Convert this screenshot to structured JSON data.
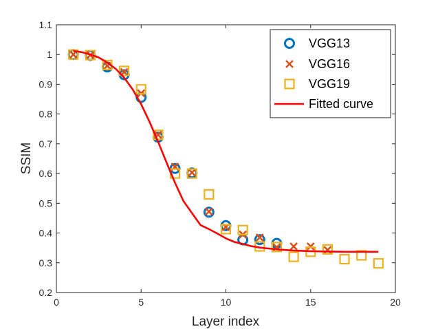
{
  "colors": {
    "vgg13": "#0072BD",
    "vgg16": "#D95319",
    "vgg19": "#EDB120",
    "fit": "#FF0000",
    "axis": "#262626",
    "background": "#FFFFFF"
  },
  "chart_data": {
    "type": "scatter",
    "title": "",
    "xlabel": "Layer index",
    "ylabel": "SSIM",
    "xlim": [
      0,
      20
    ],
    "ylim": [
      0.2,
      1.1
    ],
    "xticks": [
      0,
      5,
      10,
      15,
      20
    ],
    "yticks": [
      0.2,
      0.3,
      0.4,
      0.5,
      0.6,
      0.7,
      0.8,
      0.9,
      1,
      1.1
    ],
    "xtick_labels": [
      "0",
      "5",
      "10",
      "15",
      "20"
    ],
    "ytick_labels": [
      "0.2",
      "0.3",
      "0.4",
      "0.5",
      "0.6",
      "0.7",
      "0.8",
      "0.9",
      "1",
      "1.1"
    ],
    "grid": false,
    "box": true,
    "legend_position": "top-right",
    "series": [
      {
        "name": "VGG13",
        "marker": "circle",
        "color": "#0072BD",
        "x": [
          1,
          2,
          3,
          4,
          5,
          6,
          7,
          8,
          9,
          10,
          11,
          12,
          13
        ],
        "y": [
          1.0,
          0.997,
          0.958,
          0.932,
          0.856,
          0.722,
          0.617,
          0.602,
          0.47,
          0.425,
          0.377,
          0.378,
          0.365
        ]
      },
      {
        "name": "VGG16",
        "marker": "x",
        "color": "#D95319",
        "x": [
          1,
          2,
          3,
          4,
          5,
          6,
          7,
          8,
          9,
          10,
          11,
          12,
          13,
          14,
          15,
          16
        ],
        "y": [
          1.0,
          0.998,
          0.962,
          0.941,
          0.87,
          0.73,
          0.623,
          0.603,
          0.472,
          0.42,
          0.395,
          0.385,
          0.352,
          0.355,
          0.355,
          0.343
        ]
      },
      {
        "name": "VGG19",
        "marker": "square",
        "color": "#EDB120",
        "x": [
          1,
          2,
          3,
          4,
          5,
          6,
          7,
          8,
          9,
          10,
          11,
          12,
          13,
          14,
          15,
          16,
          17,
          18,
          19
        ],
        "y": [
          1.0,
          0.998,
          0.965,
          0.945,
          0.883,
          0.73,
          0.6,
          0.6,
          0.53,
          0.413,
          0.41,
          0.355,
          0.353,
          0.32,
          0.337,
          0.345,
          0.312,
          0.325,
          0.298
        ]
      },
      {
        "name": "Fitted curve",
        "marker": "line",
        "color": "#FF0000",
        "x": [
          1,
          1.5,
          2,
          2.5,
          3,
          3.5,
          4,
          4.5,
          5,
          5.5,
          6,
          6.5,
          7,
          7.5,
          8,
          8.5,
          9,
          9.5,
          10,
          10.5,
          11,
          11.5,
          12,
          12.5,
          13,
          13.5,
          14,
          15,
          16,
          17,
          18,
          19
        ],
        "y": [
          1.012,
          1.008,
          1.0,
          0.99,
          0.973,
          0.952,
          0.922,
          0.883,
          0.833,
          0.773,
          0.707,
          0.637,
          0.569,
          0.507,
          0.467,
          0.427,
          0.413,
          0.398,
          0.382,
          0.37,
          0.363,
          0.356,
          0.351,
          0.348,
          0.345,
          0.343,
          0.341,
          0.339,
          0.338,
          0.337,
          0.337,
          0.337
        ]
      }
    ]
  }
}
